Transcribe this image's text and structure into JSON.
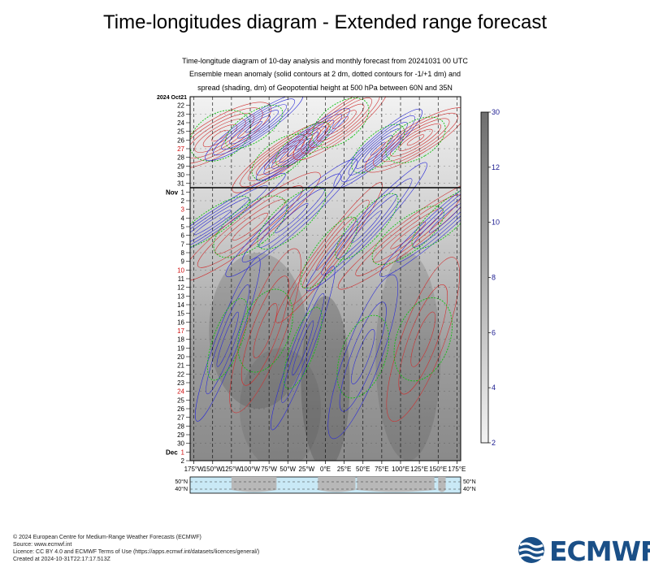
{
  "title": "Time-longitudes diagram - Extended range forecast",
  "subtitle_lines": [
    "Time-longitude diagram of 10-day analysis and monthly forecast from 20241031 00 UTC",
    "Ensemble mean anomaly (solid contours at 2 dm, dotted contours for -1/+1 dm) and",
    "spread (shading, dm) of Geopotential height at 500 hPa between 60N and 35N"
  ],
  "footer_lines": [
    "© 2024 European Centre for Medium-Range Weather Forecasts (ECMWF)",
    "Source: www.ecmwf.int",
    "Licence: CC BY 4.0 and ECMWF Terms of Use (https://apps.ecmwf.int/datasets/licences/general/)",
    "Created at 2024-10-31T22:17:17.513Z"
  ],
  "logo_text": "ECMWF",
  "colors": {
    "positive_contour": "#d03030",
    "negative_contour": "#2a2ad8",
    "zero_contour": "#10c010",
    "spread_dark": "#7d7d7d",
    "spread_light": "#e2e2e2",
    "map_ocean": "#c9e9f6",
    "map_land": "#b8b8b8",
    "colorbar_labels": "#1a1a90",
    "logo": "#1a4f87"
  },
  "chart_data": {
    "type": "heatmap",
    "x_ticks": [
      "175°W",
      "150°W",
      "125°W",
      "100°W",
      "75°W",
      "50°W",
      "25°W",
      "0°E",
      "25°E",
      "50°E",
      "75°E",
      "100°E",
      "125°E",
      "150°E",
      "175°E"
    ],
    "x_range": [
      -180,
      180
    ],
    "y_start_label": "2024 Oct21",
    "y_months": [
      {
        "label": "Nov",
        "index": 11
      },
      {
        "label": "Dec",
        "index": 41
      }
    ],
    "y_days": [
      "21",
      "22",
      "23",
      "24",
      "25",
      "26",
      "27",
      "28",
      "29",
      "30",
      "31",
      "1",
      "2",
      "3",
      "4",
      "5",
      "6",
      "7",
      "8",
      "9",
      "10",
      "11",
      "12",
      "13",
      "14",
      "15",
      "16",
      "17",
      "18",
      "19",
      "20",
      "21",
      "22",
      "23",
      "24",
      "25",
      "26",
      "27",
      "28",
      "29",
      "30",
      "1",
      "2"
    ],
    "y_red_days_index": [
      6,
      13,
      20,
      27,
      34,
      41
    ],
    "analysis_end_index": 10.5,
    "map_lat_labels": [
      "50°N",
      "40°N"
    ],
    "colorbar": {
      "ticks": [
        2,
        4,
        6,
        8,
        10,
        12,
        30
      ],
      "range": [
        2,
        30
      ]
    }
  }
}
